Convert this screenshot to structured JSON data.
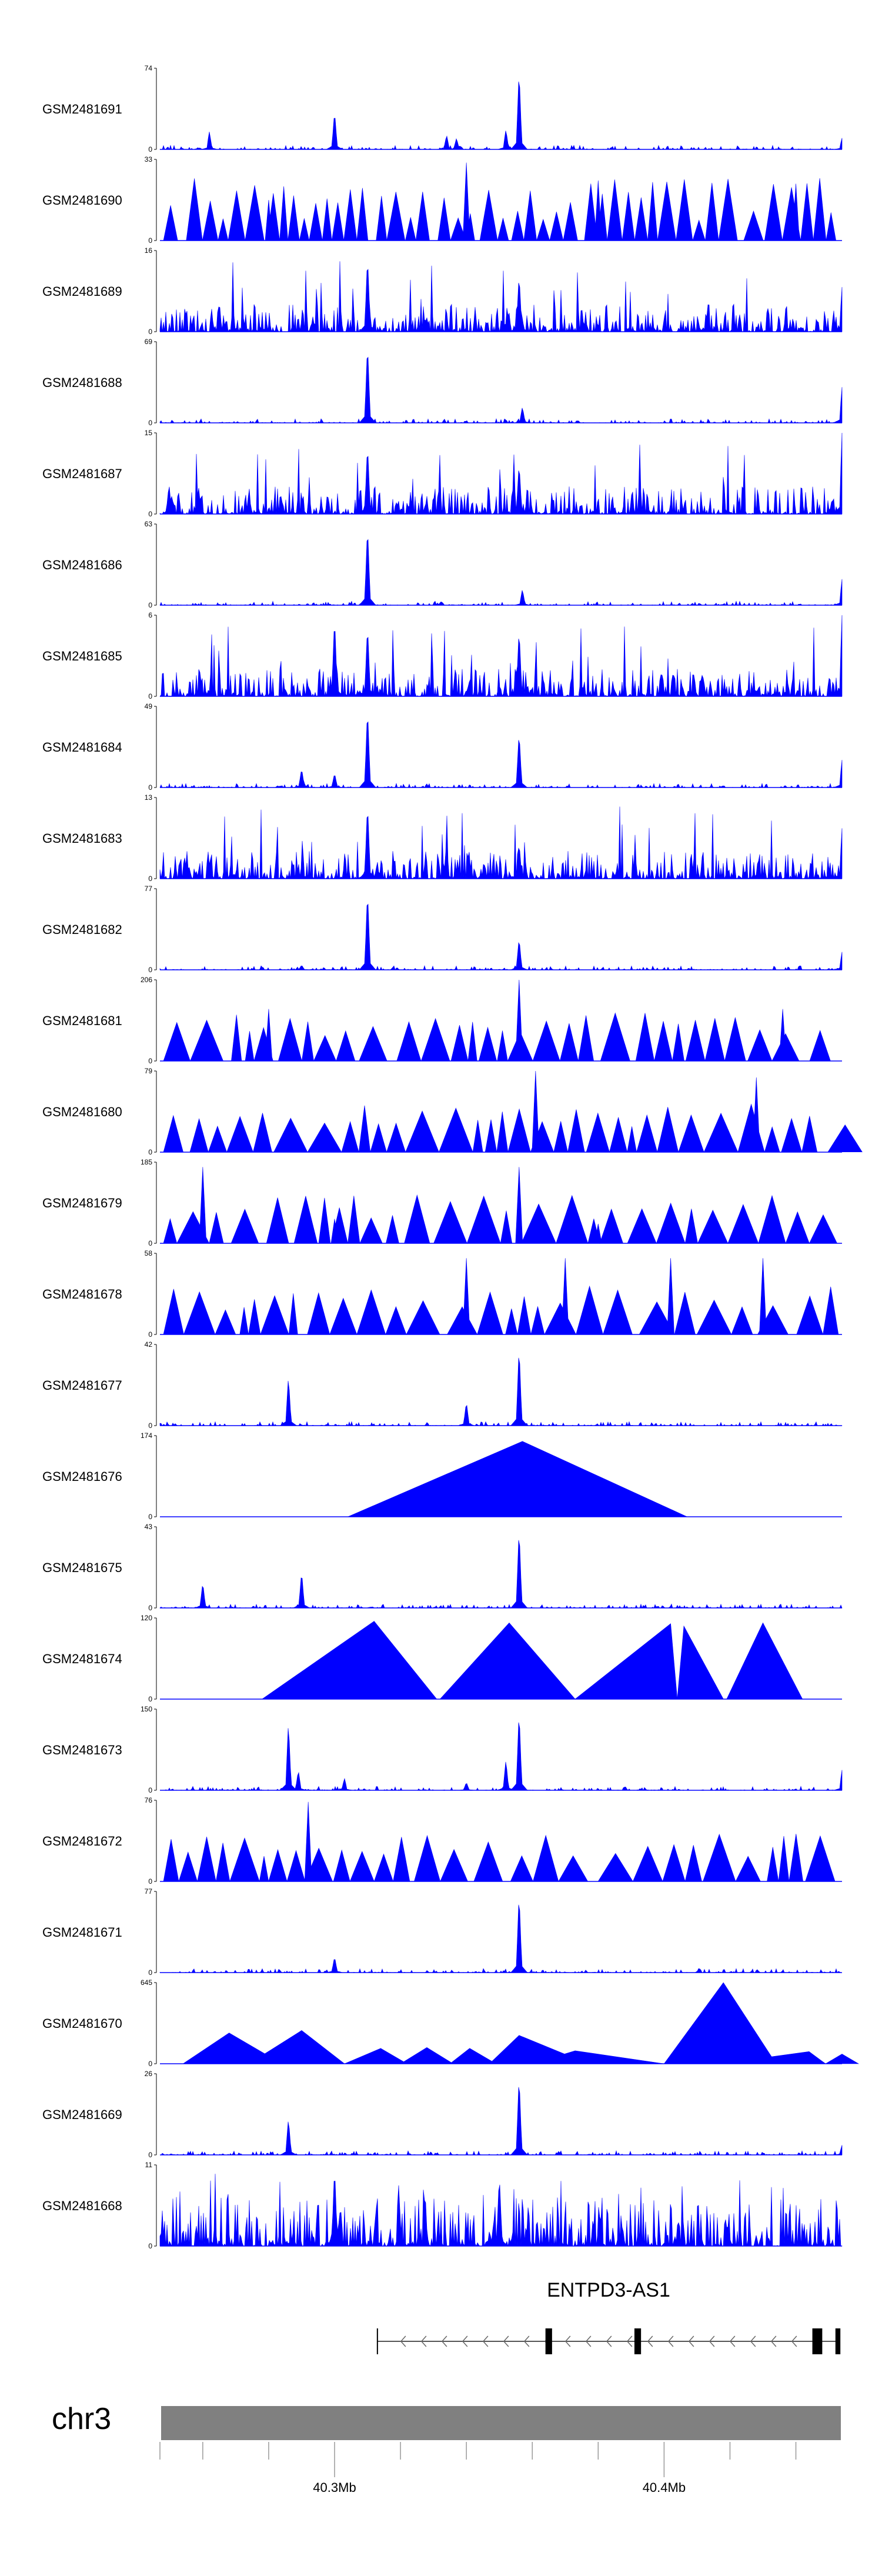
{
  "chart_data": {
    "type": "area",
    "genome": {
      "chromosome": "chr3",
      "axis_ticks": [
        {
          "label": "40.3Mb",
          "pos": 40.3
        },
        {
          "label": "40.4Mb",
          "pos": 40.4
        }
      ],
      "minor_ticks": [
        40.247,
        40.26,
        40.28,
        40.32,
        40.34,
        40.36,
        40.38,
        40.42,
        40.44
      ]
    },
    "gene": {
      "name": "ENTPD3-AS1",
      "strand": "-",
      "start": 40.313,
      "end": 40.453,
      "exons": [
        [
          40.364,
          40.366
        ],
        [
          40.391,
          40.393
        ],
        [
          40.445,
          40.448
        ],
        [
          40.452,
          40.4535
        ]
      ]
    },
    "tracks": [
      {
        "name": "GSM2481691",
        "max": 74,
        "min": 0,
        "style": "spiky",
        "peaks": [
          [
            40.262,
            0.22
          ],
          [
            40.3,
            0.48
          ],
          [
            40.334,
            0.18
          ],
          [
            40.337,
            0.14
          ],
          [
            40.352,
            0.25
          ],
          [
            40.356,
            1.0
          ],
          [
            40.454,
            0.14
          ]
        ]
      },
      {
        "name": "GSM2481690",
        "max": 33,
        "min": 0,
        "style": "peaked",
        "peaks": [
          [
            40.28,
            0.5
          ],
          [
            40.34,
            0.96
          ],
          [
            40.38,
            0.74
          ],
          [
            40.44,
            0.7
          ]
        ]
      },
      {
        "name": "GSM2481689",
        "max": 16,
        "min": 0,
        "style": "dense",
        "peaks": [
          [
            40.31,
            0.95
          ],
          [
            40.356,
            0.72
          ],
          [
            40.454,
            0.55
          ]
        ]
      },
      {
        "name": "GSM2481688",
        "max": 69,
        "min": 0,
        "style": "spiky",
        "peaks": [
          [
            40.31,
            1.0
          ],
          [
            40.357,
            0.2
          ],
          [
            40.454,
            0.44
          ]
        ]
      },
      {
        "name": "GSM2481687",
        "max": 15,
        "min": 0,
        "style": "dense",
        "peaks": [
          [
            40.31,
            0.88
          ],
          [
            40.356,
            0.64
          ],
          [
            40.454,
            1.0
          ]
        ]
      },
      {
        "name": "GSM2481686",
        "max": 63,
        "min": 0,
        "style": "spiky",
        "peaks": [
          [
            40.31,
            1.0
          ],
          [
            40.357,
            0.2
          ],
          [
            40.454,
            0.32
          ]
        ]
      },
      {
        "name": "GSM2481685",
        "max": 6,
        "min": 0,
        "style": "dense",
        "peaks": [
          [
            40.3,
            1.0
          ],
          [
            40.31,
            0.9
          ],
          [
            40.356,
            0.85
          ],
          [
            40.454,
            1.0
          ]
        ]
      },
      {
        "name": "GSM2481684",
        "max": 49,
        "min": 0,
        "style": "spiky",
        "peaks": [
          [
            40.29,
            0.24
          ],
          [
            40.3,
            0.18
          ],
          [
            40.31,
            1.0
          ],
          [
            40.356,
            0.7
          ],
          [
            40.454,
            0.34
          ]
        ]
      },
      {
        "name": "GSM2481683",
        "max": 13,
        "min": 0,
        "style": "dense",
        "peaks": [
          [
            40.31,
            0.95
          ],
          [
            40.356,
            0.45
          ],
          [
            40.454,
            0.62
          ]
        ]
      },
      {
        "name": "GSM2481682",
        "max": 77,
        "min": 0,
        "style": "spiky",
        "peaks": [
          [
            40.29,
            0.06
          ],
          [
            40.31,
            1.0
          ],
          [
            40.356,
            0.4
          ],
          [
            40.454,
            0.22
          ]
        ]
      },
      {
        "name": "GSM2481681",
        "max": 206,
        "min": 0,
        "style": "triangles",
        "peaks": [
          [
            40.28,
            0.64
          ],
          [
            40.356,
            1.0
          ],
          [
            40.436,
            0.64
          ]
        ]
      },
      {
        "name": "GSM2481680",
        "max": 79,
        "min": 0,
        "style": "triangles",
        "peaks": [
          [
            40.361,
            1.0
          ],
          [
            40.428,
            0.92
          ]
        ]
      },
      {
        "name": "GSM2481679",
        "max": 185,
        "min": 0,
        "style": "triangles",
        "peaks": [
          [
            40.26,
            0.94
          ],
          [
            40.356,
            0.94
          ],
          [
            40.3,
            0.3
          ],
          [
            40.38,
            0.24
          ]
        ]
      },
      {
        "name": "GSM2481678",
        "max": 58,
        "min": 0,
        "style": "triangles",
        "peaks": [
          [
            40.34,
            0.94
          ],
          [
            40.37,
            0.94
          ],
          [
            40.402,
            0.94
          ],
          [
            40.43,
            0.94
          ]
        ]
      },
      {
        "name": "GSM2481677",
        "max": 42,
        "min": 0,
        "style": "spiky",
        "peaks": [
          [
            40.286,
            0.62
          ],
          [
            40.34,
            0.3
          ],
          [
            40.356,
            1.0
          ]
        ]
      },
      {
        "name": "GSM2481676",
        "max": 174,
        "min": 0,
        "style": "single",
        "triangle": [
          40.304,
          40.357,
          40.407
        ]
      },
      {
        "name": "GSM2481675",
        "max": 43,
        "min": 0,
        "style": "spiky",
        "peaks": [
          [
            40.26,
            0.32
          ],
          [
            40.29,
            0.46
          ],
          [
            40.356,
            1.0
          ]
        ]
      },
      {
        "name": "GSM2481674",
        "max": 120,
        "min": 0,
        "style": "big-triangles",
        "triangles": [
          [
            40.278,
            40.312,
            40.331,
            0.96
          ],
          [
            40.332,
            40.353,
            40.373,
            0.94
          ],
          [
            40.373,
            40.402,
            40.404,
            0.93
          ],
          [
            40.404,
            40.406,
            40.418,
            0.9
          ],
          [
            40.419,
            40.43,
            40.442,
            0.94
          ]
        ]
      },
      {
        "name": "GSM2481673",
        "max": 150,
        "min": 0,
        "style": "spiky",
        "peaks": [
          [
            40.286,
            0.86
          ],
          [
            40.289,
            0.25
          ],
          [
            40.303,
            0.15
          ],
          [
            40.34,
            0.1
          ],
          [
            40.352,
            0.38
          ],
          [
            40.356,
            1.0
          ],
          [
            40.454,
            0.25
          ]
        ]
      },
      {
        "name": "GSM2481672",
        "max": 76,
        "min": 0,
        "style": "triangles",
        "peaks": [
          [
            40.292,
            0.98
          ],
          [
            40.356,
            0.2
          ]
        ]
      },
      {
        "name": "GSM2481671",
        "max": 77,
        "min": 0,
        "style": "spiky",
        "peaks": [
          [
            40.3,
            0.2
          ],
          [
            40.356,
            1.0
          ]
        ]
      },
      {
        "name": "GSM2481670",
        "max": 645,
        "min": 0,
        "style": "big-triangles",
        "triangles": [
          [
            40.254,
            40.268,
            40.284,
            0.38
          ],
          [
            40.274,
            40.29,
            40.303,
            0.41
          ],
          [
            40.303,
            40.314,
            40.322,
            0.19
          ],
          [
            40.32,
            40.328,
            40.336,
            0.2
          ],
          [
            40.335,
            40.341,
            40.349,
            0.19
          ],
          [
            40.347,
            40.356,
            40.377,
            0.35
          ],
          [
            40.36,
            40.373,
            40.4,
            0.16
          ],
          [
            40.4,
            40.418,
            40.434,
            1.0
          ],
          [
            40.417,
            40.444,
            40.449,
            0.15
          ],
          [
            40.449,
            40.454,
            40.459,
            0.12
          ]
        ]
      },
      {
        "name": "GSM2481669",
        "max": 26,
        "min": 0,
        "style": "spiky",
        "peaks": [
          [
            40.286,
            0.46
          ],
          [
            40.356,
            1.0
          ],
          [
            40.454,
            0.12
          ]
        ]
      },
      {
        "name": "GSM2481668",
        "max": 11,
        "min": 0,
        "style": "dense-tall",
        "peaks": [
          [
            40.3,
            1.0
          ],
          [
            40.35,
            0.9
          ]
        ]
      }
    ],
    "range": [
      40.247,
      40.454
    ],
    "fill_color": "#0000ff",
    "genome_color": "#808080"
  }
}
